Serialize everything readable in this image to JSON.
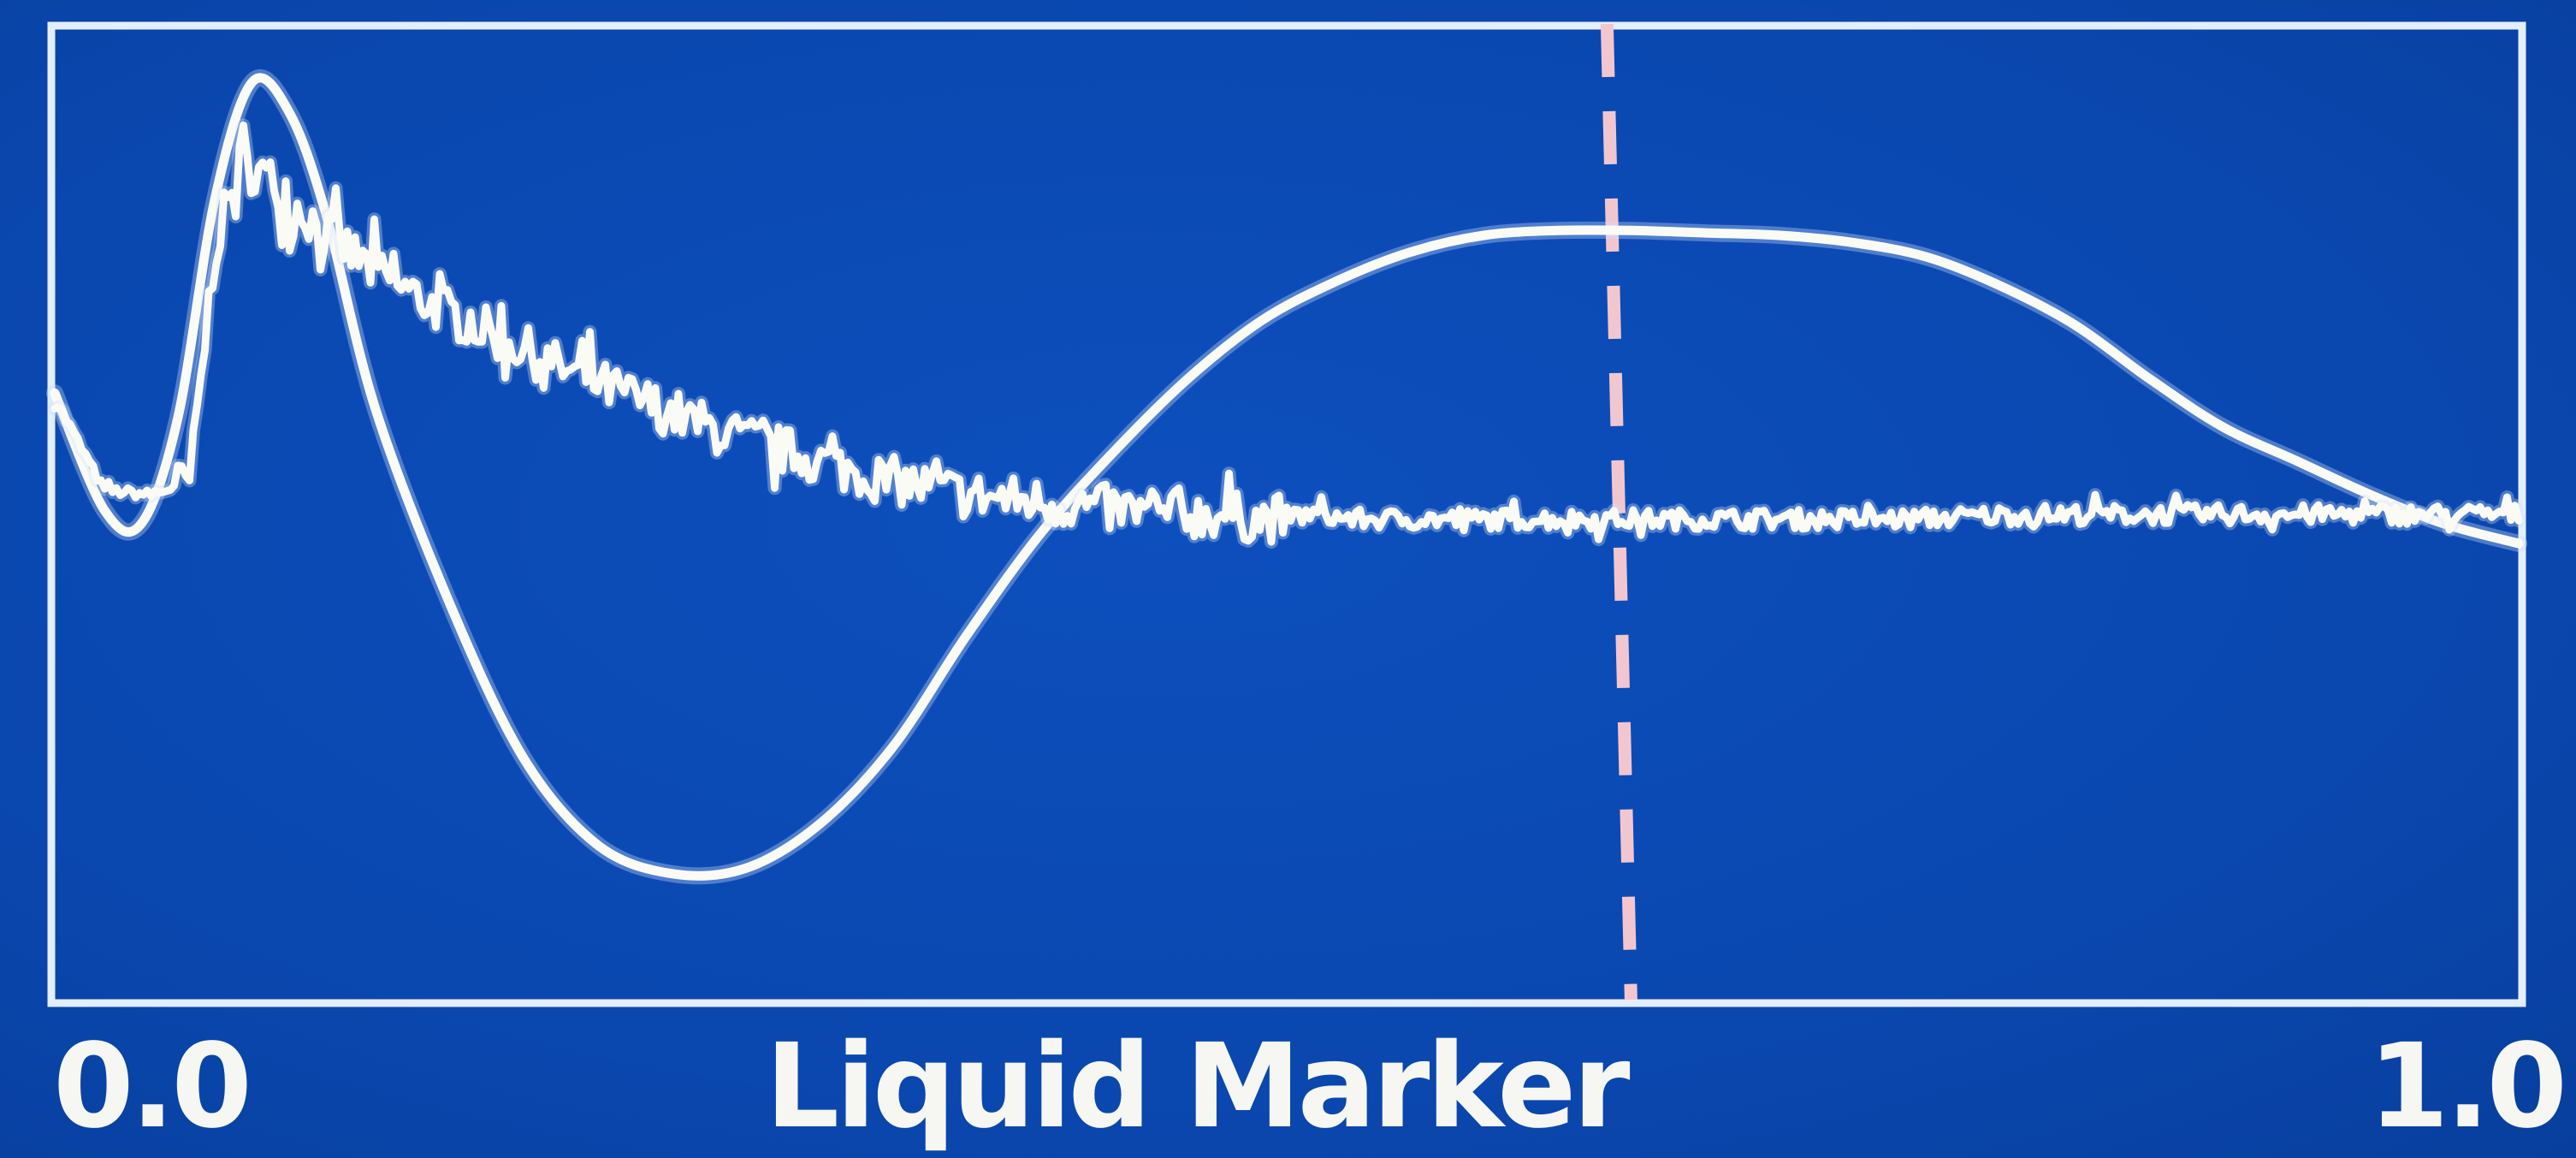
{
  "chart_data": {
    "type": "line",
    "xlabel": "Liquid Marker",
    "x_tick_labels": [
      "0.0",
      "1.0"
    ],
    "xlim": [
      0.0,
      1.0
    ],
    "ylim": [
      -1.0,
      1.0
    ],
    "grid": false,
    "marker": {
      "x": 0.63,
      "style": "dashed",
      "color": "#f2c6cf"
    },
    "line_color": "#fbfbf6",
    "background_color": "#0a49b0",
    "frame_color": "#e4eefc",
    "series": [
      {
        "style": "smooth",
        "x": [
          0.0,
          0.02,
          0.035,
          0.05,
          0.065,
          0.08,
          0.095,
          0.11,
          0.13,
          0.16,
          0.19,
          0.22,
          0.25,
          0.28,
          0.31,
          0.34,
          0.37,
          0.4,
          0.43,
          0.46,
          0.49,
          0.52,
          0.55,
          0.58,
          0.61,
          0.64,
          0.67,
          0.7,
          0.73,
          0.76,
          0.79,
          0.82,
          0.85,
          0.88,
          0.91,
          0.94,
          0.97,
          1.0
        ],
        "y": [
          0.25,
          0.01,
          -0.02,
          0.2,
          0.65,
          0.89,
          0.83,
          0.62,
          0.22,
          -0.18,
          -0.5,
          -0.68,
          -0.74,
          -0.73,
          -0.64,
          -0.48,
          -0.25,
          -0.04,
          0.13,
          0.28,
          0.4,
          0.48,
          0.54,
          0.575,
          0.585,
          0.585,
          0.58,
          0.575,
          0.56,
          0.53,
          0.47,
          0.39,
          0.28,
          0.18,
          0.11,
          0.04,
          -0.02,
          -0.06
        ]
      },
      {
        "style": "noisy",
        "x": [
          0.0,
          0.02,
          0.04,
          0.055,
          0.065,
          0.075,
          0.085,
          0.095,
          0.11,
          0.13,
          0.15,
          0.17,
          0.19,
          0.21,
          0.23,
          0.25,
          0.27,
          0.29,
          0.31,
          0.33,
          0.35,
          0.37,
          0.39,
          0.41,
          0.43,
          0.45,
          0.47,
          0.49,
          0.51,
          0.53,
          0.55,
          0.6,
          0.65,
          0.7,
          0.75,
          0.8,
          0.85,
          0.9,
          0.95,
          1.0
        ],
        "y": [
          0.24,
          0.05,
          0.04,
          0.07,
          0.55,
          0.72,
          0.7,
          0.65,
          0.58,
          0.5,
          0.44,
          0.39,
          0.34,
          0.29,
          0.25,
          0.21,
          0.17,
          0.14,
          0.11,
          0.08,
          0.06,
          0.04,
          0.03,
          0.02,
          0.01,
          0.0,
          0.0,
          -0.01,
          0.0,
          -0.01,
          -0.01,
          -0.01,
          -0.01,
          -0.01,
          -0.01,
          0.0,
          0.0,
          0.0,
          0.0,
          0.0
        ]
      }
    ]
  }
}
